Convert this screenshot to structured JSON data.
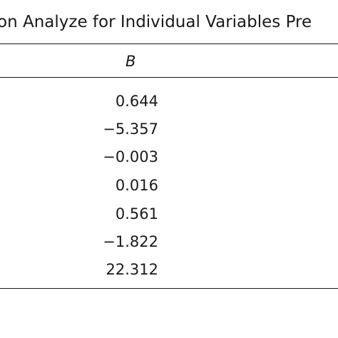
{
  "table": {
    "title": "on Analyze for Individual Variables Pre",
    "column_header": "B",
    "values": [
      "0.644",
      "−5.357",
      "−0.003",
      "0.016",
      "0.561",
      "−1.822",
      "22.312"
    ]
  }
}
